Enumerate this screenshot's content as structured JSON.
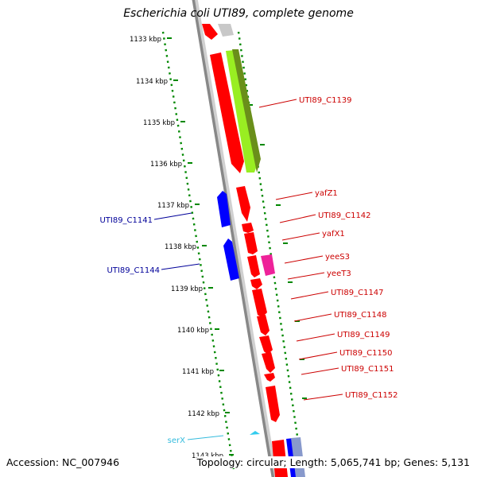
{
  "header": {
    "title": "Escherichia coli UTI89, complete genome"
  },
  "footer": {
    "accession": "Accession: NC_007946",
    "summary": "Topology: circular; Length: 5,065,741 bp; Genes: 5,131"
  },
  "colors": {
    "forward_cds": "#ff0000",
    "reverse_cds": "#0000ff",
    "trna": "#33ccee",
    "backbone": "#888888",
    "tick_track": "#008800",
    "cds_label": "#cc0000",
    "reverse_label": "#000099",
    "trna_label": "#33bbdd",
    "ncrna": "#ee2299",
    "homology": "#99ee22"
  },
  "ruler": {
    "labels": [
      "1133 kbp",
      "1134 kbp",
      "1135 kbp",
      "1136 kbp",
      "1137 kbp",
      "1138 kbp",
      "1139 kbp",
      "1140 kbp",
      "1141 kbp",
      "1142 kbp",
      "1143 kbp"
    ]
  },
  "features": {
    "forward": [
      "UTI89_C1139",
      "yafZ1",
      "UTI89_C1142",
      "yafX1",
      "yeeS3",
      "yeeT3",
      "UTI89_C1147",
      "UTI89_C1148",
      "UTI89_C1149",
      "UTI89_C1150",
      "UTI89_C1151",
      "UTI89_C1152"
    ],
    "reverse": [
      "UTI89_C1141",
      "UTI89_C1144"
    ],
    "trna": [
      "serX"
    ]
  }
}
